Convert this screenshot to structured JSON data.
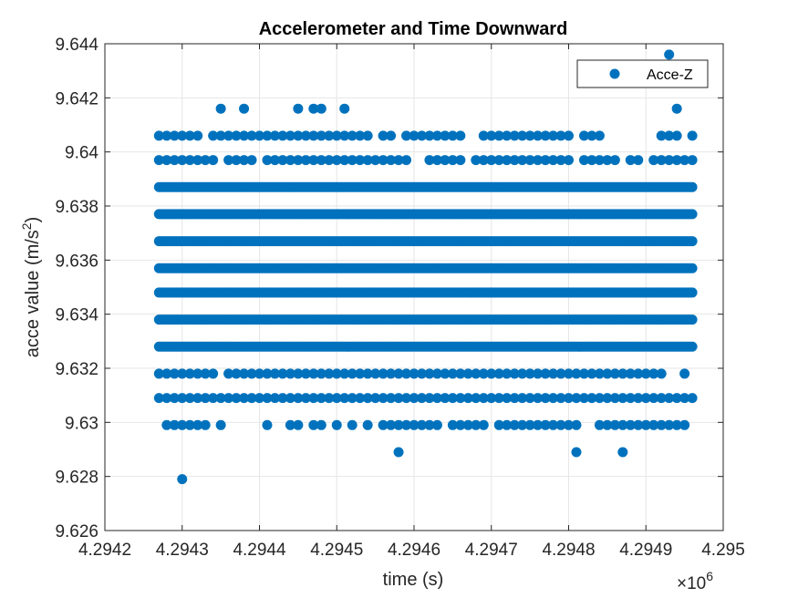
{
  "chart_data": {
    "type": "scatter",
    "title": "Accelerometer and Time Downward",
    "xlabel": "time (s)",
    "ylabel_main": "acce value (m/s",
    "ylabel_sup": "2",
    "ylabel_end": ")",
    "x_exponent_label": "×10",
    "x_exponent_power": "6",
    "xlim": [
      4.2942,
      4.295
    ],
    "ylim": [
      9.626,
      9.644
    ],
    "x_ticks": [
      4.2942,
      4.2943,
      4.2944,
      4.2945,
      4.2946,
      4.2947,
      4.2948,
      4.2949,
      4.295
    ],
    "x_tick_labels": [
      "4.2942",
      "4.2943",
      "4.2944",
      "4.2945",
      "4.2946",
      "4.2947",
      "4.2948",
      "4.2949",
      "4.295"
    ],
    "y_ticks": [
      9.626,
      9.628,
      9.63,
      9.632,
      9.634,
      9.636,
      9.638,
      9.64,
      9.642,
      9.644
    ],
    "y_tick_labels": [
      "9.626",
      "9.628",
      "9.63",
      "9.632",
      "9.634",
      "9.636",
      "9.638",
      "9.64",
      "9.642",
      "9.644"
    ],
    "grid": true,
    "legend_position": "top-right",
    "series": [
      {
        "name": "Acce-Z",
        "color": "#0072BD",
        "marker": "filled-circle",
        "bands": [
          {
            "y": 9.6387,
            "x_start": 4.29427,
            "x_end": 4.29496,
            "step": 2.5e-06
          },
          {
            "y": 9.6377,
            "x_start": 4.29427,
            "x_end": 4.29496,
            "step": 2.5e-06
          },
          {
            "y": 9.6367,
            "x_start": 4.29427,
            "x_end": 4.29496,
            "step": 2.5e-06
          },
          {
            "y": 9.6357,
            "x_start": 4.29427,
            "x_end": 4.29496,
            "step": 2.5e-06
          },
          {
            "y": 9.6348,
            "x_start": 4.29427,
            "x_end": 4.29496,
            "step": 2.5e-06
          },
          {
            "y": 9.6338,
            "x_start": 4.29427,
            "x_end": 4.29496,
            "step": 2.5e-06
          },
          {
            "y": 9.6328,
            "x_start": 4.29427,
            "x_end": 4.29496,
            "step": 2.5e-06
          }
        ],
        "rows": [
          {
            "y": 9.6397,
            "x": [
              4.29427,
              4.29428,
              4.29429,
              4.2943,
              4.29431,
              4.29432,
              4.29433,
              4.29434,
              4.29436,
              4.29437,
              4.29438,
              4.29439,
              4.29441,
              4.29442,
              4.29443,
              4.29444,
              4.29445,
              4.29446,
              4.29447,
              4.29448,
              4.29449,
              4.2945,
              4.29451,
              4.29452,
              4.29453,
              4.29454,
              4.29455,
              4.29456,
              4.29457,
              4.29458,
              4.29459,
              4.29462,
              4.29463,
              4.29464,
              4.29465,
              4.29466,
              4.29468,
              4.29469,
              4.2947,
              4.29471,
              4.29472,
              4.29473,
              4.29474,
              4.29475,
              4.29476,
              4.29477,
              4.29478,
              4.29479,
              4.2948,
              4.29482,
              4.29483,
              4.29484,
              4.29485,
              4.29486,
              4.29488,
              4.29489,
              4.29491,
              4.29492,
              4.29493,
              4.29494,
              4.29495,
              4.29496
            ]
          },
          {
            "y": 9.6318,
            "x": [
              4.29427,
              4.29428,
              4.29429,
              4.2943,
              4.29431,
              4.29432,
              4.29433,
              4.29434,
              4.29436,
              4.29437,
              4.29438,
              4.29439,
              4.2944,
              4.29441,
              4.29442,
              4.29443,
              4.29444,
              4.29445,
              4.29446,
              4.29447,
              4.29448,
              4.29449,
              4.2945,
              4.29451,
              4.29452,
              4.29453,
              4.29454,
              4.29455,
              4.29456,
              4.29457,
              4.29458,
              4.29459,
              4.2946,
              4.29461,
              4.29462,
              4.29463,
              4.29464,
              4.29465,
              4.29466,
              4.29467,
              4.29468,
              4.29469,
              4.2947,
              4.29471,
              4.29472,
              4.29473,
              4.29474,
              4.29475,
              4.29476,
              4.29477,
              4.29478,
              4.29479,
              4.2948,
              4.29481,
              4.29482,
              4.29483,
              4.29484,
              4.29485,
              4.29486,
              4.29487,
              4.29488,
              4.29489,
              4.2949,
              4.29491,
              4.29492,
              4.29495
            ]
          },
          {
            "y": 9.6309,
            "x": [
              4.29427,
              4.29428,
              4.29429,
              4.2943,
              4.29431,
              4.29432,
              4.29433,
              4.29434,
              4.29435,
              4.29436,
              4.29437,
              4.29438,
              4.29439,
              4.2944,
              4.29441,
              4.29442,
              4.29443,
              4.29444,
              4.29445,
              4.29446,
              4.29447,
              4.29448,
              4.29449,
              4.2945,
              4.29451,
              4.29452,
              4.29453,
              4.29454,
              4.29455,
              4.29456,
              4.29457,
              4.29458,
              4.29459,
              4.2946,
              4.29461,
              4.29462,
              4.29463,
              4.29464,
              4.29465,
              4.29466,
              4.29467,
              4.29468,
              4.29469,
              4.2947,
              4.29471,
              4.29472,
              4.29473,
              4.29474,
              4.29475,
              4.29476,
              4.29477,
              4.29478,
              4.29479,
              4.2948,
              4.29481,
              4.29482,
              4.29483,
              4.29484,
              4.29485,
              4.29486,
              4.29487,
              4.29488,
              4.29489,
              4.2949,
              4.29491,
              4.29492,
              4.29493,
              4.29494,
              4.29495,
              4.29496
            ]
          },
          {
            "y": 9.6406,
            "x": [
              4.29427,
              4.29428,
              4.29429,
              4.2943,
              4.29431,
              4.29432,
              4.29434,
              4.29435,
              4.29436,
              4.29437,
              4.29438,
              4.29439,
              4.2944,
              4.29441,
              4.29442,
              4.29443,
              4.29444,
              4.29445,
              4.29446,
              4.29447,
              4.29448,
              4.29449,
              4.2945,
              4.29451,
              4.29452,
              4.29453,
              4.29454,
              4.29456,
              4.29457,
              4.29459,
              4.2946,
              4.29461,
              4.29462,
              4.29463,
              4.29464,
              4.29465,
              4.29466,
              4.29469,
              4.2947,
              4.29471,
              4.29472,
              4.29473,
              4.29474,
              4.29475,
              4.29476,
              4.29477,
              4.29478,
              4.29479,
              4.2948,
              4.29482,
              4.29483,
              4.29484,
              4.29492,
              4.29493,
              4.29494,
              4.29496
            ]
          },
          {
            "y": 9.6299,
            "x": [
              4.29428,
              4.29429,
              4.2943,
              4.29431,
              4.29432,
              4.29433,
              4.29435,
              4.29441,
              4.29444,
              4.29445,
              4.29447,
              4.29448,
              4.2945,
              4.29452,
              4.29454,
              4.29456,
              4.29457,
              4.29458,
              4.29459,
              4.2946,
              4.29461,
              4.29462,
              4.29463,
              4.29465,
              4.29466,
              4.29467,
              4.29468,
              4.29469,
              4.29471,
              4.29472,
              4.29473,
              4.29474,
              4.29475,
              4.29476,
              4.29477,
              4.29478,
              4.29479,
              4.2948,
              4.29481,
              4.29484,
              4.29485,
              4.29486,
              4.29487,
              4.29488,
              4.29489,
              4.2949,
              4.29491,
              4.29492,
              4.29493,
              4.29494,
              4.29495
            ]
          },
          {
            "y": 9.6416,
            "x": [
              4.29435,
              4.29438,
              4.29445,
              4.29447,
              4.29448,
              4.29451,
              4.29494
            ]
          },
          {
            "y": 9.6289,
            "x": [
              4.29458,
              4.29481,
              4.29487
            ]
          },
          {
            "y": 9.6279,
            "x": [
              4.2943
            ]
          },
          {
            "y": 9.6426,
            "x": [
              4.29493
            ]
          },
          {
            "y": 9.6436,
            "x": [
              4.29493
            ]
          }
        ]
      }
    ]
  }
}
